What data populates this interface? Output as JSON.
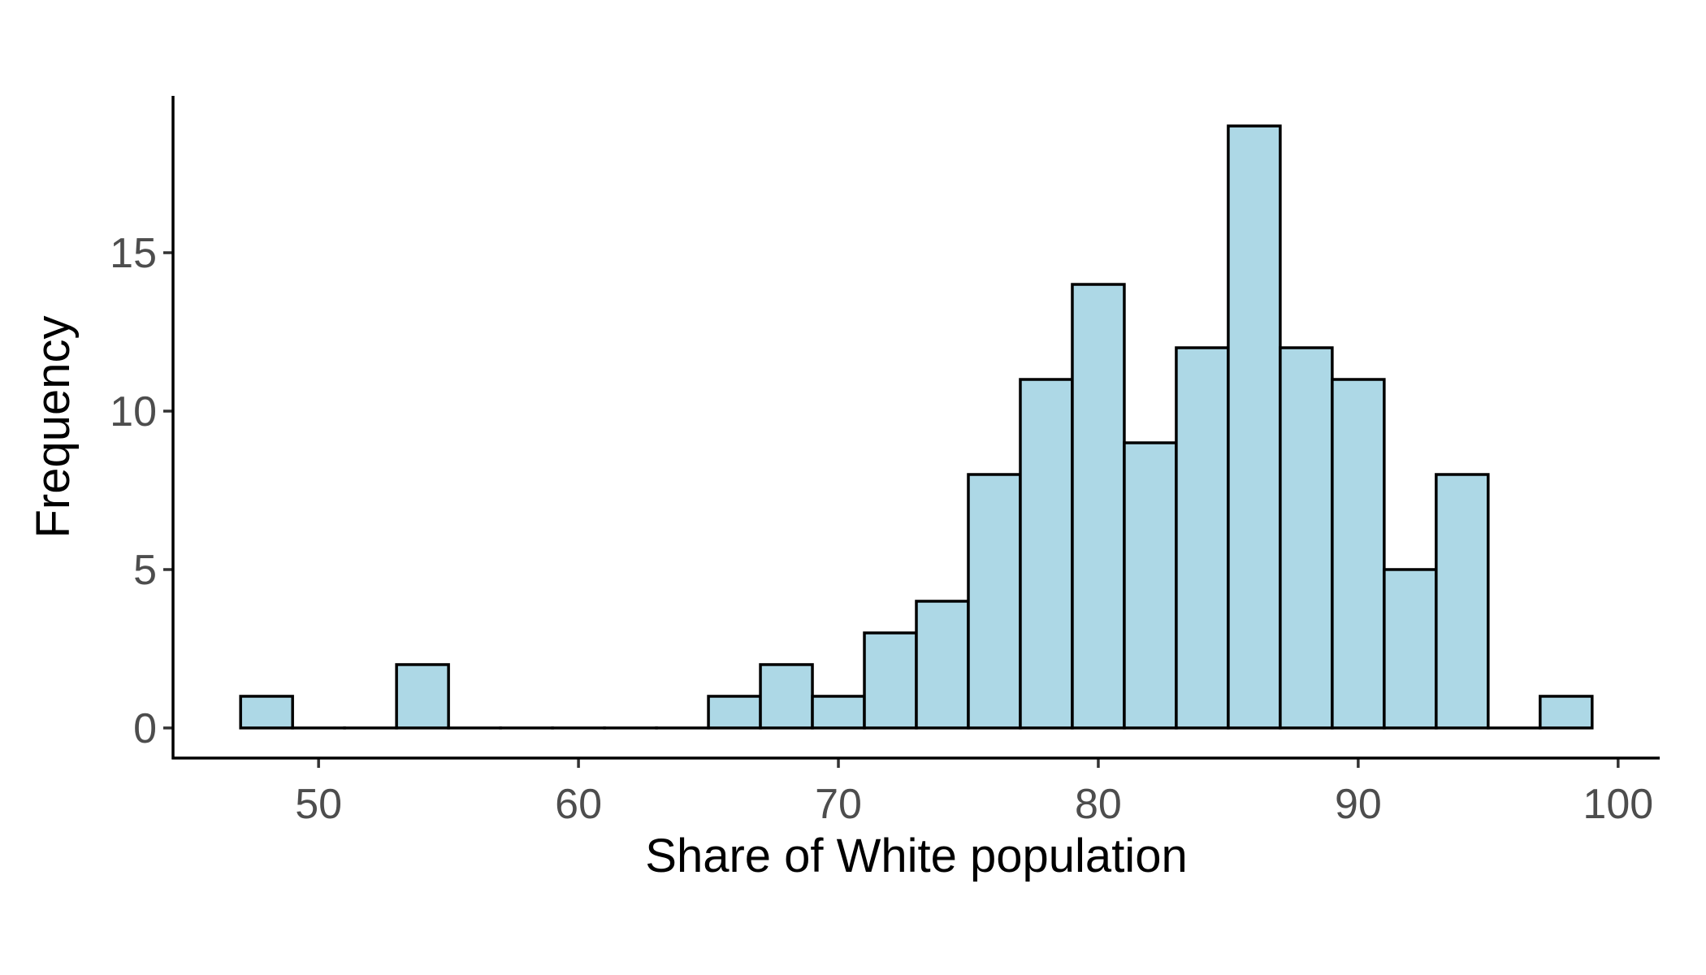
{
  "chart_data": {
    "type": "bar",
    "subtype": "histogram",
    "xlabel": "Share of White population",
    "ylabel": "Frequency",
    "bin_width": 2,
    "bins": [
      {
        "start": 47,
        "end": 49,
        "count": 1
      },
      {
        "start": 49,
        "end": 51,
        "count": 0
      },
      {
        "start": 51,
        "end": 53,
        "count": 0
      },
      {
        "start": 53,
        "end": 55,
        "count": 2
      },
      {
        "start": 55,
        "end": 57,
        "count": 0
      },
      {
        "start": 57,
        "end": 59,
        "count": 0
      },
      {
        "start": 59,
        "end": 61,
        "count": 0
      },
      {
        "start": 61,
        "end": 63,
        "count": 0
      },
      {
        "start": 63,
        "end": 65,
        "count": 0
      },
      {
        "start": 65,
        "end": 67,
        "count": 1
      },
      {
        "start": 67,
        "end": 69,
        "count": 2
      },
      {
        "start": 69,
        "end": 71,
        "count": 1
      },
      {
        "start": 71,
        "end": 73,
        "count": 3
      },
      {
        "start": 73,
        "end": 75,
        "count": 4
      },
      {
        "start": 75,
        "end": 77,
        "count": 8
      },
      {
        "start": 77,
        "end": 79,
        "count": 11
      },
      {
        "start": 79,
        "end": 81,
        "count": 14
      },
      {
        "start": 81,
        "end": 83,
        "count": 9
      },
      {
        "start": 83,
        "end": 85,
        "count": 12
      },
      {
        "start": 85,
        "end": 87,
        "count": 19
      },
      {
        "start": 87,
        "end": 89,
        "count": 12
      },
      {
        "start": 89,
        "end": 91,
        "count": 11
      },
      {
        "start": 91,
        "end": 93,
        "count": 5
      },
      {
        "start": 93,
        "end": 95,
        "count": 8
      },
      {
        "start": 95,
        "end": 97,
        "count": 0
      },
      {
        "start": 97,
        "end": 99,
        "count": 1
      }
    ],
    "xlim": [
      44.4,
      101.6
    ],
    "ylim": [
      -0.95,
      19.95
    ],
    "x_ticks": [
      50,
      60,
      70,
      80,
      90,
      100
    ],
    "y_ticks": [
      0,
      5,
      10,
      15
    ],
    "bar_fill": "#add8e6",
    "bar_outline": "#000000",
    "grid": false,
    "legend": "none"
  }
}
